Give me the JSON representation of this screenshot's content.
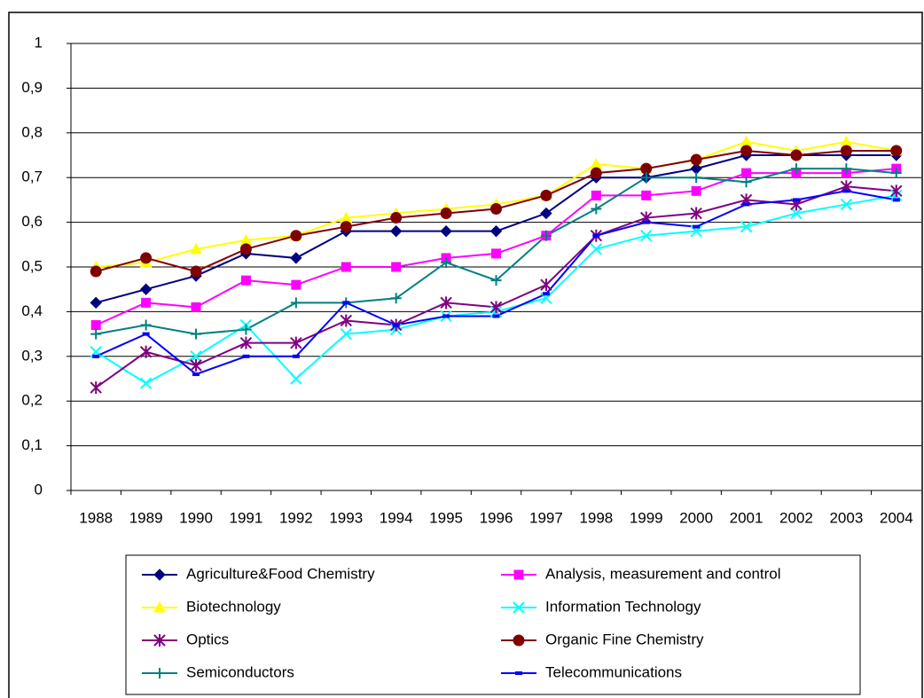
{
  "chart_data": {
    "type": "line",
    "categories": [
      "1988",
      "1989",
      "1990",
      "1991",
      "1992",
      "1993",
      "1994",
      "1995",
      "1996",
      "1997",
      "1998",
      "1999",
      "2000",
      "2001",
      "2002",
      "2003",
      "2004"
    ],
    "ylim": [
      0,
      1
    ],
    "yticks": [
      0,
      {
        "value": 0.1,
        "label": "0,1"
      },
      {
        "value": 0.2,
        "label": "0,2"
      },
      {
        "value": 0.3,
        "label": "0,3"
      },
      {
        "value": 0.4,
        "label": "0,4"
      },
      {
        "value": 0.5,
        "label": "0,5"
      },
      {
        "value": 0.6,
        "label": "0,6"
      },
      {
        "value": 0.7,
        "label": "0,7"
      },
      {
        "value": 0.8,
        "label": "0,8"
      },
      {
        "value": 0.9,
        "label": "0,9"
      },
      1
    ],
    "grid": true,
    "legend": "bottom",
    "series": [
      {
        "name": "Agriculture&Food Chemistry",
        "color": "#000080",
        "marker": "diamond",
        "values": [
          0.42,
          0.45,
          0.48,
          0.53,
          0.52,
          0.58,
          0.58,
          0.58,
          0.58,
          0.62,
          0.7,
          0.7,
          0.72,
          0.75,
          0.75,
          0.75,
          0.75
        ]
      },
      {
        "name": "Analysis, measurement and control",
        "color": "#ff00ff",
        "marker": "square",
        "values": [
          0.37,
          0.42,
          0.41,
          0.47,
          0.46,
          0.5,
          0.5,
          0.52,
          0.53,
          0.57,
          0.66,
          0.66,
          0.67,
          0.71,
          0.71,
          0.71,
          0.72
        ]
      },
      {
        "name": "Biotechnology",
        "color": "#ffff00",
        "marker": "triangle",
        "values": [
          0.5,
          0.51,
          0.54,
          0.56,
          0.57,
          0.61,
          0.62,
          0.63,
          0.64,
          0.66,
          0.73,
          0.72,
          0.74,
          0.78,
          0.76,
          0.78,
          0.76
        ]
      },
      {
        "name": "Information Technology",
        "color": "#00ffff",
        "marker": "x",
        "values": [
          0.31,
          0.24,
          0.3,
          0.37,
          0.25,
          0.35,
          0.36,
          0.39,
          0.4,
          0.43,
          0.54,
          0.57,
          0.58,
          0.59,
          0.62,
          0.64,
          0.66
        ]
      },
      {
        "name": "Optics",
        "color": "#800080",
        "marker": "star",
        "values": [
          0.23,
          0.31,
          0.28,
          0.33,
          0.33,
          0.38,
          0.37,
          0.42,
          0.41,
          0.46,
          0.57,
          0.61,
          0.62,
          0.65,
          0.64,
          0.68,
          0.67
        ]
      },
      {
        "name": "Organic Fine Chemistry",
        "color": "#800000",
        "marker": "circle",
        "values": [
          0.49,
          0.52,
          0.49,
          0.54,
          0.57,
          0.59,
          0.61,
          0.62,
          0.63,
          0.66,
          0.71,
          0.72,
          0.74,
          0.76,
          0.75,
          0.76,
          0.76
        ]
      },
      {
        "name": "Semiconductors",
        "color": "#008080",
        "marker": "plus",
        "values": [
          0.35,
          0.37,
          0.35,
          0.36,
          0.42,
          0.42,
          0.43,
          0.51,
          0.47,
          0.57,
          0.63,
          0.7,
          0.7,
          0.69,
          0.72,
          0.72,
          0.71
        ]
      },
      {
        "name": "Telecommunications",
        "color": "#0000ff",
        "marker": "dash",
        "values": [
          0.3,
          0.35,
          0.26,
          0.3,
          0.3,
          0.42,
          0.37,
          0.39,
          0.39,
          0.44,
          0.57,
          0.6,
          0.59,
          0.64,
          0.65,
          0.67,
          0.65
        ]
      }
    ]
  }
}
